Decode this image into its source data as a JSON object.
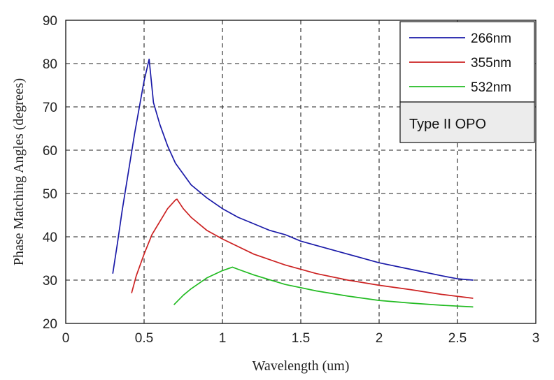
{
  "chart_data": {
    "type": "line",
    "xlabel": "Wavelength (um)",
    "ylabel": "Phase Matching Angles (degrees)",
    "xlim": [
      0,
      3
    ],
    "ylim": [
      20,
      90
    ],
    "xticks": [
      0,
      0.5,
      1,
      1.5,
      2,
      2.5,
      3
    ],
    "yticks": [
      20,
      30,
      40,
      50,
      60,
      70,
      80,
      90
    ],
    "xtick_labels": [
      "0",
      "0.5",
      "1",
      "1.5",
      "2",
      "2.5",
      "3"
    ],
    "ytick_labels": [
      "20",
      "30",
      "40",
      "50",
      "60",
      "70",
      "80",
      "90"
    ],
    "grid": true,
    "legend_position": "top-right",
    "annotation": "Type II OPO",
    "series": [
      {
        "name": "266nm",
        "color": "#1a1aa8",
        "x": [
          0.3,
          0.33,
          0.36,
          0.4,
          0.44,
          0.48,
          0.5,
          0.532,
          0.56,
          0.6,
          0.65,
          0.7,
          0.8,
          0.9,
          1.0,
          1.1,
          1.2,
          1.3,
          1.4,
          1.5,
          1.6,
          1.8,
          2.0,
          2.2,
          2.4,
          2.5,
          2.6
        ],
        "y": [
          31.5,
          38.5,
          46,
          55,
          64,
          72,
          76,
          81,
          71,
          66,
          61,
          57,
          52,
          49,
          46.5,
          44.5,
          43,
          41.5,
          40.5,
          39,
          38,
          36,
          34,
          32.5,
          31,
          30.3,
          30
        ]
      },
      {
        "name": "355nm",
        "color": "#cc2222",
        "x": [
          0.42,
          0.45,
          0.5,
          0.55,
          0.6,
          0.65,
          0.7,
          0.71,
          0.75,
          0.8,
          0.9,
          1.0,
          1.2,
          1.4,
          1.6,
          1.8,
          2.0,
          2.2,
          2.4,
          2.6
        ],
        "y": [
          27,
          31,
          36,
          40.5,
          43.5,
          46.5,
          48.5,
          48.7,
          46.5,
          44.5,
          41.5,
          39.5,
          36,
          33.5,
          31.5,
          30,
          28.8,
          27.8,
          26.7,
          25.8
        ]
      },
      {
        "name": "532nm",
        "color": "#22bb22",
        "x": [
          0.69,
          0.75,
          0.8,
          0.9,
          1.0,
          1.064,
          1.1,
          1.2,
          1.4,
          1.6,
          1.8,
          2.0,
          2.2,
          2.4,
          2.6
        ],
        "y": [
          24.3,
          26.5,
          28,
          30.5,
          32.2,
          33,
          32.5,
          31.2,
          29,
          27.5,
          26.3,
          25.3,
          24.7,
          24.2,
          23.8
        ]
      }
    ]
  }
}
